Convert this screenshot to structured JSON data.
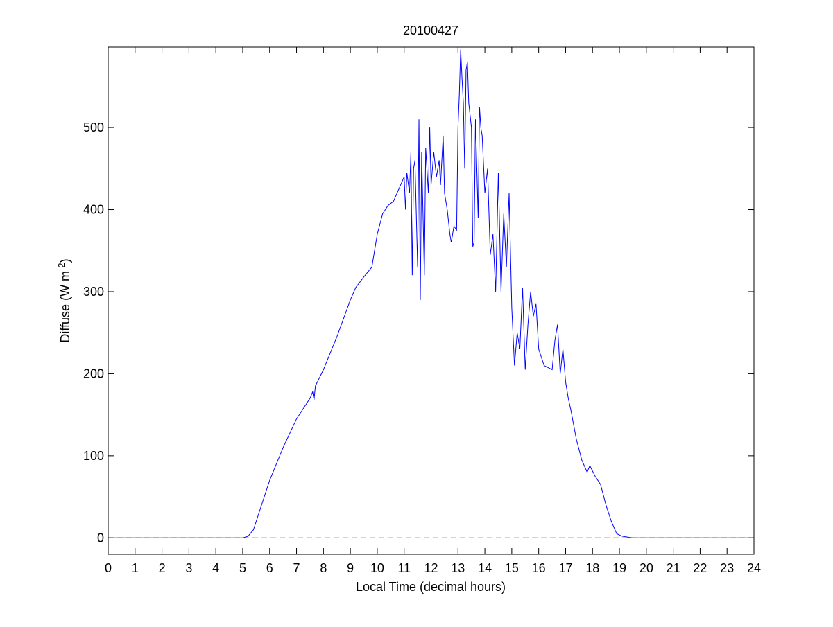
{
  "chart_data": {
    "type": "line",
    "title": "20100427",
    "xlabel": "Local Time (decimal hours)",
    "ylabel": {
      "text": "Diffuse (W m",
      "sup": "-2",
      "end": ")"
    },
    "x": [
      0,
      5.0,
      5.2,
      5.4,
      5.6,
      5.8,
      6.0,
      6.5,
      7.0,
      7.5,
      7.6,
      7.65,
      7.7,
      8.0,
      8.5,
      9.0,
      9.2,
      9.5,
      9.8,
      10.0,
      10.2,
      10.4,
      10.6,
      10.8,
      11.0,
      11.05,
      11.1,
      11.2,
      11.25,
      11.3,
      11.35,
      11.4,
      11.5,
      11.55,
      11.6,
      11.65,
      11.75,
      11.8,
      11.9,
      11.95,
      12.0,
      12.1,
      12.2,
      12.3,
      12.35,
      12.45,
      12.5,
      12.6,
      12.7,
      12.75,
      12.85,
      12.95,
      13.0,
      13.05,
      13.1,
      13.15,
      13.2,
      13.25,
      13.3,
      13.35,
      13.4,
      13.5,
      13.55,
      13.6,
      13.65,
      13.7,
      13.75,
      13.8,
      13.85,
      13.9,
      14.0,
      14.1,
      14.2,
      14.3,
      14.4,
      14.5,
      14.6,
      14.7,
      14.8,
      14.9,
      15.0,
      15.1,
      15.2,
      15.3,
      15.4,
      15.5,
      15.6,
      15.7,
      15.8,
      15.9,
      16.0,
      16.2,
      16.5,
      16.6,
      16.7,
      16.8,
      16.9,
      17.0,
      17.1,
      17.2,
      17.4,
      17.6,
      17.8,
      17.9,
      18.1,
      18.3,
      18.5,
      18.7,
      18.9,
      19.1,
      19.5,
      24
    ],
    "series": [
      {
        "name": "Diffuse",
        "color": "#0000ff",
        "values": [
          0,
          0,
          2,
          10,
          30,
          50,
          70,
          110,
          145,
          170,
          178,
          168,
          185,
          205,
          245,
          290,
          305,
          318,
          330,
          370,
          395,
          405,
          410,
          425,
          440,
          400,
          445,
          420,
          470,
          320,
          450,
          460,
          330,
          510,
          290,
          470,
          320,
          475,
          420,
          500,
          430,
          470,
          440,
          460,
          430,
          490,
          420,
          400,
          370,
          360,
          380,
          375,
          500,
          540,
          595,
          560,
          530,
          450,
          570,
          580,
          530,
          500,
          355,
          360,
          510,
          450,
          390,
          525,
          500,
          490,
          420,
          450,
          345,
          370,
          300,
          445,
          300,
          395,
          330,
          420,
          280,
          210,
          250,
          230,
          305,
          205,
          260,
          300,
          270,
          285,
          230,
          210,
          205,
          240,
          260,
          200,
          230,
          190,
          170,
          155,
          120,
          95,
          80,
          88,
          75,
          65,
          40,
          20,
          5,
          2,
          0,
          0
        ]
      }
    ],
    "reference_line": {
      "y": 0,
      "color": "#ff0000",
      "style": "dashed"
    },
    "xlim": [
      0,
      24
    ],
    "xticks": [
      0,
      1,
      2,
      3,
      4,
      5,
      6,
      7,
      8,
      9,
      10,
      11,
      12,
      13,
      14,
      15,
      16,
      17,
      18,
      19,
      20,
      21,
      22,
      23,
      24
    ],
    "ylim": [
      -20,
      598
    ],
    "yticks": [
      0,
      100,
      200,
      300,
      400,
      500
    ],
    "grid": false
  }
}
